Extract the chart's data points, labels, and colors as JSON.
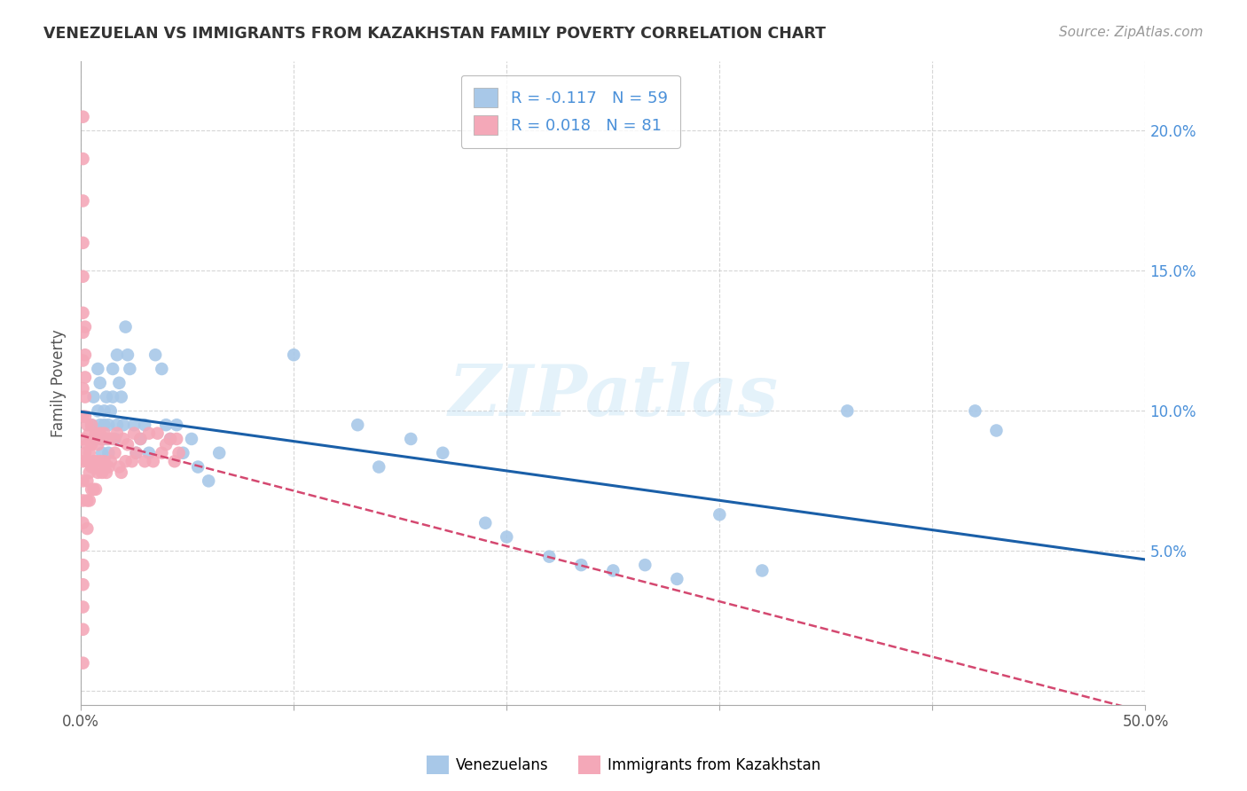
{
  "title": "VENEZUELAN VS IMMIGRANTS FROM KAZAKHSTAN FAMILY POVERTY CORRELATION CHART",
  "source": "Source: ZipAtlas.com",
  "ylabel": "Family Poverty",
  "xlim": [
    0,
    0.5
  ],
  "ylim": [
    -0.005,
    0.225
  ],
  "xtick_vals": [
    0.0,
    0.1,
    0.2,
    0.3,
    0.4,
    0.5
  ],
  "xtick_labels": [
    "0.0%",
    "",
    "",
    "",
    "",
    "50.0%"
  ],
  "ytick_vals": [
    0.0,
    0.05,
    0.1,
    0.15,
    0.2
  ],
  "ytick_labels": [
    "",
    "5.0%",
    "10.0%",
    "15.0%",
    "20.0%"
  ],
  "venezuelan_color": "#a8c8e8",
  "kazakhstan_color": "#f4a8b8",
  "venezuelan_R": -0.117,
  "venezuelan_N": 59,
  "kazakhstan_R": 0.018,
  "kazakhstan_N": 81,
  "venezuelan_line_color": "#1a5fa8",
  "kazakhstan_line_color": "#d44870",
  "watermark": "ZIPatlas",
  "legend_label_1": "Venezuelans",
  "legend_label_2": "Immigrants from Kazakhstan",
  "venezuelan_x": [
    0.005,
    0.006,
    0.007,
    0.008,
    0.008,
    0.009,
    0.009,
    0.01,
    0.01,
    0.011,
    0.011,
    0.012,
    0.012,
    0.013,
    0.013,
    0.014,
    0.015,
    0.015,
    0.016,
    0.017,
    0.017,
    0.018,
    0.019,
    0.02,
    0.021,
    0.022,
    0.023,
    0.025,
    0.026,
    0.028,
    0.03,
    0.032,
    0.035,
    0.038,
    0.04,
    0.042,
    0.045,
    0.048,
    0.052,
    0.055,
    0.06,
    0.065,
    0.1,
    0.13,
    0.14,
    0.155,
    0.17,
    0.19,
    0.2,
    0.22,
    0.235,
    0.25,
    0.265,
    0.28,
    0.3,
    0.32,
    0.36,
    0.42,
    0.43
  ],
  "venezuelan_y": [
    0.095,
    0.105,
    0.09,
    0.115,
    0.1,
    0.11,
    0.095,
    0.09,
    0.085,
    0.1,
    0.095,
    0.105,
    0.09,
    0.095,
    0.085,
    0.1,
    0.115,
    0.105,
    0.09,
    0.12,
    0.095,
    0.11,
    0.105,
    0.095,
    0.13,
    0.12,
    0.115,
    0.095,
    0.085,
    0.09,
    0.095,
    0.085,
    0.12,
    0.115,
    0.095,
    0.09,
    0.095,
    0.085,
    0.09,
    0.08,
    0.075,
    0.085,
    0.12,
    0.095,
    0.08,
    0.09,
    0.085,
    0.06,
    0.055,
    0.048,
    0.045,
    0.043,
    0.045,
    0.04,
    0.063,
    0.043,
    0.1,
    0.1,
    0.093
  ],
  "kazakhstan_x": [
    0.001,
    0.001,
    0.001,
    0.001,
    0.001,
    0.001,
    0.001,
    0.001,
    0.001,
    0.001,
    0.001,
    0.001,
    0.001,
    0.001,
    0.001,
    0.001,
    0.001,
    0.001,
    0.001,
    0.001,
    0.001,
    0.002,
    0.002,
    0.002,
    0.002,
    0.002,
    0.002,
    0.003,
    0.003,
    0.003,
    0.003,
    0.003,
    0.003,
    0.004,
    0.004,
    0.004,
    0.004,
    0.005,
    0.005,
    0.005,
    0.005,
    0.006,
    0.006,
    0.006,
    0.007,
    0.007,
    0.007,
    0.008,
    0.008,
    0.009,
    0.009,
    0.01,
    0.01,
    0.011,
    0.011,
    0.012,
    0.013,
    0.013,
    0.014,
    0.015,
    0.016,
    0.017,
    0.018,
    0.019,
    0.02,
    0.021,
    0.022,
    0.024,
    0.025,
    0.026,
    0.028,
    0.03,
    0.032,
    0.034,
    0.036,
    0.038,
    0.04,
    0.042,
    0.044,
    0.045,
    0.046
  ],
  "kazakhstan_y": [
    0.205,
    0.19,
    0.175,
    0.16,
    0.148,
    0.135,
    0.128,
    0.118,
    0.108,
    0.098,
    0.09,
    0.082,
    0.075,
    0.068,
    0.06,
    0.052,
    0.045,
    0.038,
    0.03,
    0.022,
    0.01,
    0.13,
    0.12,
    0.112,
    0.105,
    0.098,
    0.085,
    0.095,
    0.088,
    0.082,
    0.075,
    0.068,
    0.058,
    0.092,
    0.085,
    0.078,
    0.068,
    0.095,
    0.088,
    0.08,
    0.072,
    0.09,
    0.082,
    0.072,
    0.092,
    0.082,
    0.072,
    0.088,
    0.078,
    0.092,
    0.082,
    0.09,
    0.078,
    0.092,
    0.082,
    0.078,
    0.09,
    0.08,
    0.082,
    0.09,
    0.085,
    0.092,
    0.08,
    0.078,
    0.09,
    0.082,
    0.088,
    0.082,
    0.092,
    0.085,
    0.09,
    0.082,
    0.092,
    0.082,
    0.092,
    0.085,
    0.088,
    0.09,
    0.082,
    0.09,
    0.085
  ]
}
